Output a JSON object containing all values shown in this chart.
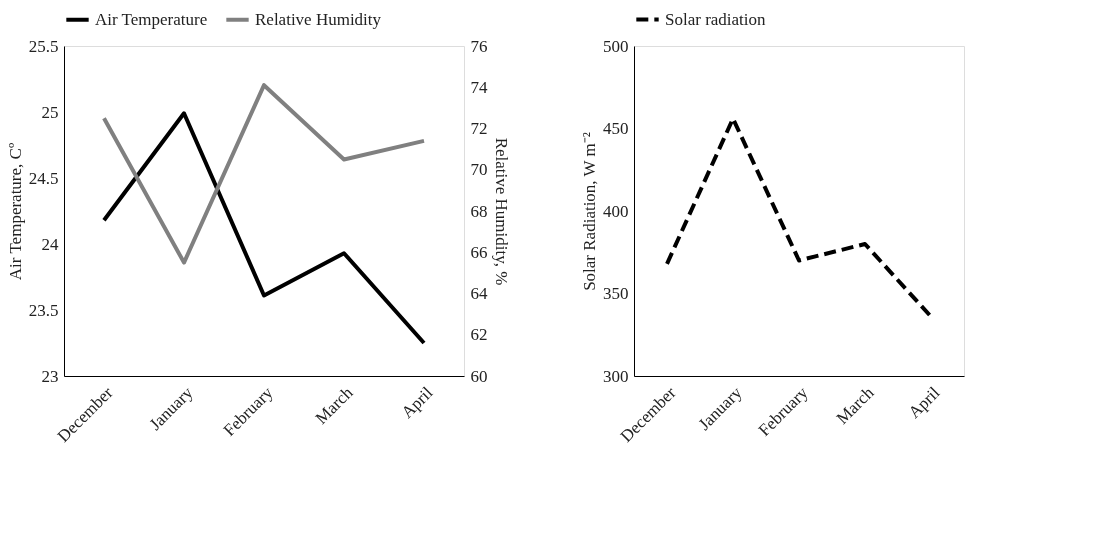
{
  "chart_data": [
    {
      "type": "line",
      "categories": [
        "December",
        "January",
        "February",
        "March",
        "April"
      ],
      "ylabel": "Air Temperature, Cº",
      "y2label": "Relative Humidity, %",
      "ylim": [
        23,
        25.5
      ],
      "yticks": [
        23,
        23.5,
        24,
        24.5,
        25,
        25.5
      ],
      "y2lim": [
        60,
        76
      ],
      "y2ticks": [
        60,
        62,
        64,
        66,
        68,
        70,
        72,
        74,
        76
      ],
      "legend": "top",
      "grid": false,
      "series": [
        {
          "name": "Air Temperature",
          "color": "#000000",
          "values": [
            24.18,
            24.99,
            23.61,
            23.93,
            23.25
          ]
        },
        {
          "name": "Relative Humidity",
          "color": "#808080",
          "axis": "y2",
          "values": [
            72.5,
            65.5,
            74.1,
            70.5,
            71.4
          ]
        }
      ]
    },
    {
      "type": "line",
      "categories": [
        "December",
        "January",
        "February",
        "March",
        "April"
      ],
      "ylabel": "Solar Radiation, W m⁻²",
      "ylim": [
        300,
        500
      ],
      "yticks": [
        300,
        350,
        400,
        450,
        500
      ],
      "legend": "top",
      "grid": false,
      "series": [
        {
          "name": "Solar radiation",
          "color": "#000000",
          "line_style": "dashed",
          "values": [
            368,
            456,
            370,
            380,
            336
          ]
        }
      ]
    }
  ]
}
